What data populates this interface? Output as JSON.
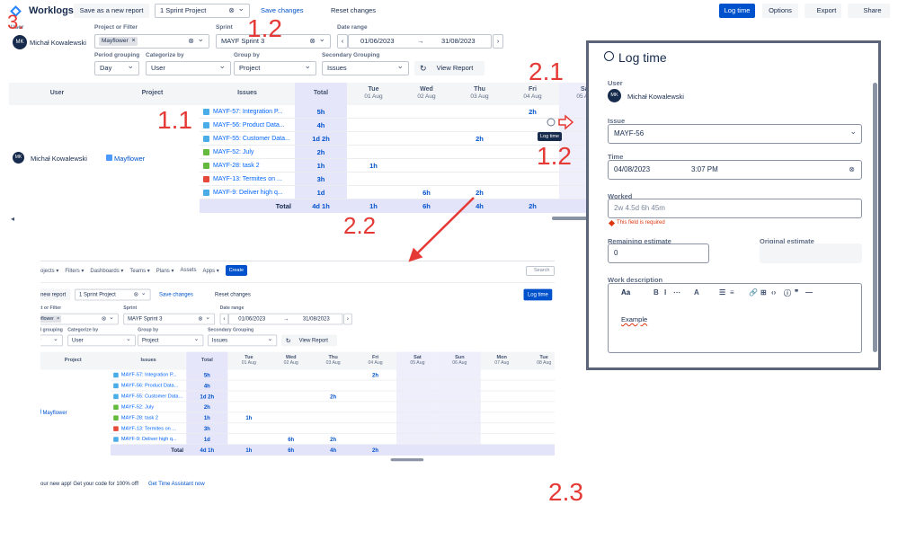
{
  "app": {
    "title": "Worklogs",
    "save_as": "Save as a new report",
    "project_select": "1 Sprint Project",
    "save_changes": "Save changes",
    "reset_changes": "Reset changes",
    "log_time": "Log time",
    "options": "Options",
    "export": "Export",
    "share": "Share"
  },
  "filters": {
    "user_label": "User",
    "user_initials": "MK",
    "user_name": "Michał Kowalewski",
    "project_label": "Project or Filter",
    "project_tag": "Mayflower",
    "sprint_label": "Sprint",
    "sprint_value": "MAYF Sprint 3",
    "date_label": "Date range",
    "date_from": "01/06/2023",
    "date_to": "31/08/2023",
    "period_label": "Period grouping",
    "period_value": "Day",
    "categorize_label": "Categorize by",
    "categorize_value": "User",
    "group_label": "Group by",
    "group_value": "Project",
    "secondary_label": "Secondary Grouping",
    "secondary_value": "Issues",
    "view_report": "View Report"
  },
  "table": {
    "headers": {
      "user": "User",
      "project": "Project",
      "issues": "Issues",
      "total": "Total"
    },
    "days": [
      {
        "day": "Tue",
        "date": "01 Aug",
        "weekend": false
      },
      {
        "day": "Wed",
        "date": "02 Aug",
        "weekend": false
      },
      {
        "day": "Thu",
        "date": "03 Aug",
        "weekend": false
      },
      {
        "day": "Fri",
        "date": "04 Aug",
        "weekend": false
      },
      {
        "day": "Sat",
        "date": "05 Aug",
        "weekend": true
      },
      {
        "day": "Sun",
        "date": "06 Aug",
        "weekend": true
      },
      {
        "day": "Mon",
        "date": "07 Aug",
        "weekend": false
      },
      {
        "day": "Tue",
        "date": "08 Aug",
        "weekend": false
      }
    ],
    "user_initials": "MK",
    "user": "Michał Kowalewski",
    "project": "Mayflower",
    "rows": [
      {
        "issue": "MAYF-57: Integration P...",
        "icon_color": "#4bade8",
        "total": "5h",
        "days": [
          null,
          null,
          null,
          "2h",
          null,
          null,
          null,
          null
        ]
      },
      {
        "issue": "MAYF-56: Product Data...",
        "icon_color": "#4bade8",
        "total": "4h",
        "days": [
          null,
          null,
          null,
          null,
          null,
          null,
          null,
          null
        ]
      },
      {
        "issue": "MAYF-55: Customer Data...",
        "icon_color": "#4bade8",
        "total": "1d 2h",
        "days": [
          null,
          null,
          "2h",
          null,
          null,
          null,
          null,
          null
        ]
      },
      {
        "issue": "MAYF-52: July",
        "icon_color": "#63ba3c",
        "total": "2h",
        "days": [
          null,
          null,
          null,
          null,
          null,
          null,
          null,
          null
        ]
      },
      {
        "issue": "MAYF-28: task 2",
        "icon_color": "#63ba3c",
        "total": "1h",
        "days": [
          "1h",
          null,
          null,
          null,
          null,
          null,
          null,
          null
        ]
      },
      {
        "issue": "MAYF-13: Termites on ...",
        "icon_color": "#e5493a",
        "total": "3h",
        "days": [
          null,
          null,
          null,
          null,
          null,
          null,
          null,
          null
        ]
      },
      {
        "issue": "MAYF-9: Deliver high q...",
        "icon_color": "#4bade8",
        "total": "1d",
        "days": [
          null,
          "6h",
          "2h",
          null,
          null,
          null,
          null,
          null
        ]
      }
    ],
    "total_label": "Total",
    "total": "4d 1h",
    "total_days": [
      "1h",
      "6h",
      "4h",
      "2h",
      null,
      null,
      null,
      null
    ]
  },
  "annotations": [
    "3.",
    "1.2",
    "1.1",
    "2.1",
    "1.2",
    "2.2",
    "2.3"
  ],
  "tooltip": "Log time",
  "log_time_panel": {
    "title": "Log time",
    "user_label": "User",
    "user_initials": "MK",
    "user": "Michał Kowalewski",
    "issue_label": "Issue",
    "issue": "MAYF-56",
    "time_label": "Time",
    "date": "04/08/2023",
    "time": "3:07 PM",
    "worked_label": "Worked",
    "worked_placeholder": "2w 4.5d 6h 45m",
    "error": "This field is required",
    "remaining_label": "Remaining estimate",
    "remaining": "0",
    "original_label": "Original estimate",
    "description_label": "Work description",
    "text_style": "Aa",
    "description": "Example"
  },
  "lower_copy": {
    "nav": [
      {
        "label": "ojects",
        "dropdown": true
      },
      {
        "label": "Filters",
        "dropdown": true
      },
      {
        "label": "Dashboards",
        "dropdown": true
      },
      {
        "label": "Teams",
        "dropdown": true
      },
      {
        "label": "Plans",
        "dropdown": true
      },
      {
        "label": "Assets",
        "dropdown": false
      },
      {
        "label": "Apps",
        "dropdown": true
      }
    ],
    "create": "Create",
    "search": "Search",
    "promo": "our new app! Get your code for 100% off!",
    "promo_link": "Get Time Assistant now"
  }
}
